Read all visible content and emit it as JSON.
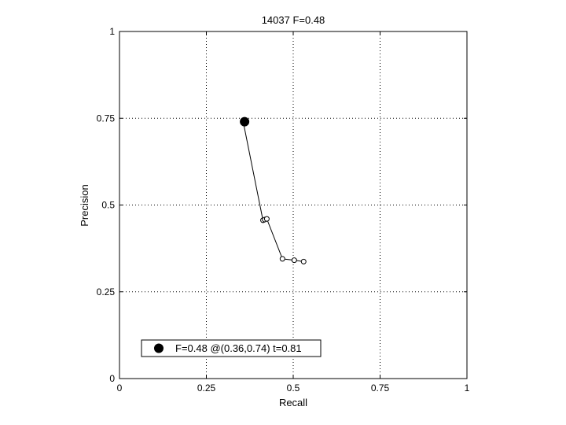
{
  "chart_data": {
    "type": "scatter",
    "title": "14037 F=0.48",
    "xlabel": "Recall",
    "ylabel": "Precision",
    "xlim": [
      0,
      1
    ],
    "ylim": [
      0,
      1
    ],
    "grid": true,
    "x_ticks": [
      0,
      0.25,
      0.5,
      0.75,
      1
    ],
    "y_ticks": [
      0,
      0.25,
      0.5,
      0.75,
      1
    ],
    "x_tick_labels": [
      "0",
      "0.25",
      "0.5",
      "0.75",
      "1"
    ],
    "y_tick_labels": [
      "0",
      "0.25",
      "0.5",
      "0.75",
      "1"
    ],
    "series": [
      {
        "style": "line-with-open-circle-markers",
        "color": "#000000",
        "points": [
          {
            "x": 0.357,
            "y": 0.735
          },
          {
            "x": 0.413,
            "y": 0.456
          },
          {
            "x": 0.418,
            "y": 0.458
          },
          {
            "x": 0.424,
            "y": 0.46
          },
          {
            "x": 0.469,
            "y": 0.345
          },
          {
            "x": 0.503,
            "y": 0.341
          },
          {
            "x": 0.53,
            "y": 0.337
          }
        ]
      }
    ],
    "highlight": {
      "x": 0.36,
      "y": 0.74,
      "marker": "filled-circle",
      "color": "#000000"
    },
    "legend": {
      "placement": "bottom-left",
      "entries": [
        {
          "label": "F=0.48 @(0.36,0.74) t=0.81",
          "marker": "filled-circle"
        }
      ]
    }
  }
}
